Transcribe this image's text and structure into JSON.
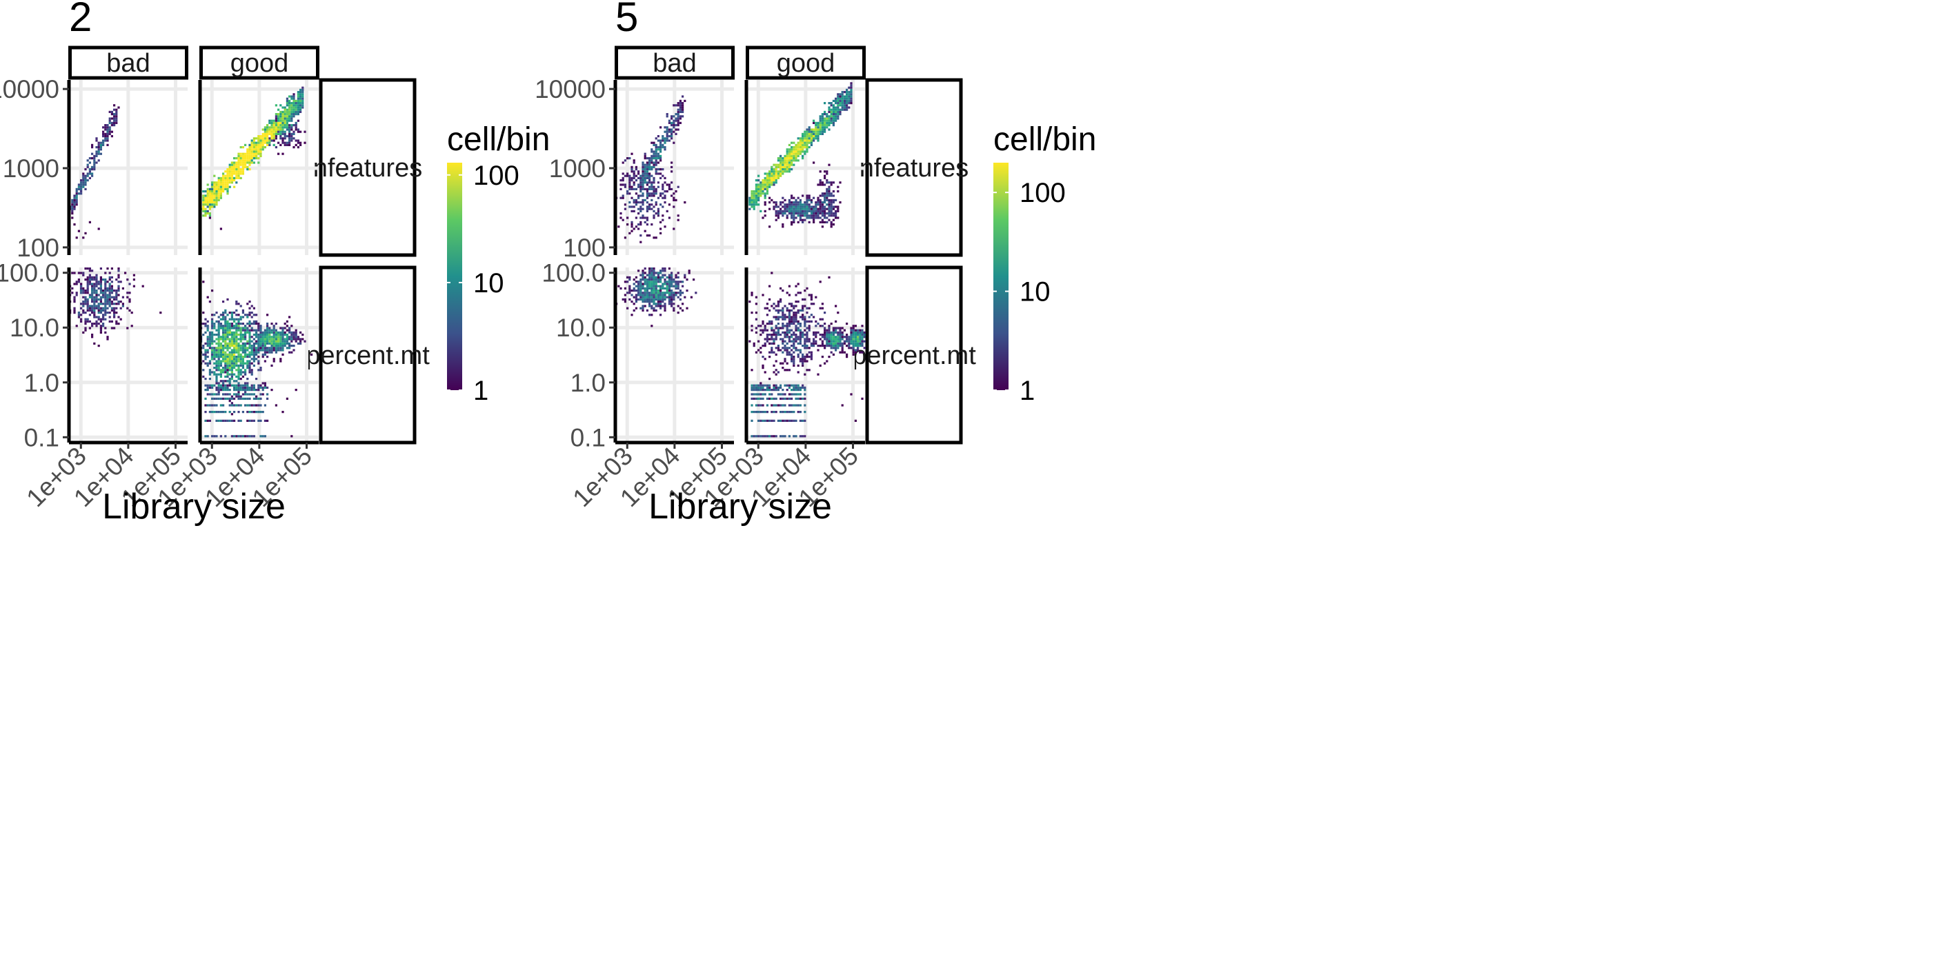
{
  "chart_data": [
    {
      "type": "heatmap",
      "title": "2",
      "xlabel": "Library size",
      "ylabel": "",
      "x_scale": "log10",
      "y_scale": "log10",
      "x_ticks": [
        "1e+03",
        "1e+04",
        "1e+05"
      ],
      "x_tick_values": [
        1000,
        10000,
        100000
      ],
      "facet_columns": [
        "bad",
        "good"
      ],
      "facet_rows": [
        {
          "name": "nfeatures",
          "ylim": [
            80,
            13000
          ],
          "y_ticks": [
            "100",
            "1000",
            "10000"
          ],
          "y_tick_values": [
            100,
            1000,
            10000
          ]
        },
        {
          "name": "percent.mt",
          "ylim": [
            0.08,
            125
          ],
          "y_ticks": [
            "0.1",
            "1.0",
            "10.0",
            "100.0"
          ],
          "y_tick_values": [
            0.1,
            1,
            10,
            100
          ]
        }
      ],
      "fill": {
        "title": "cell/bin",
        "scale": "log10",
        "range": [
          1,
          130
        ],
        "ticks": [
          "1",
          "10",
          "100"
        ],
        "tick_values": [
          1,
          10,
          100
        ],
        "palette": "viridis"
      },
      "panels": [
        {
          "col": "bad",
          "row": "nfeatures",
          "clusters": [
            {
              "kind": "band",
              "x0": 600,
              "y0": 300,
              "x1": 6000,
              "y1": 5500,
              "width": 0.06,
              "n": 260,
              "peak": 3
            }
          ],
          "scatter": [
            [
              700,
              190
            ],
            [
              900,
              160
            ],
            [
              1200,
              150
            ],
            [
              800,
              130
            ],
            [
              2500,
              170
            ],
            [
              1500,
              210
            ],
            [
              650,
              240
            ],
            [
              1100,
              130
            ]
          ]
        },
        {
          "col": "good",
          "row": "nfeatures",
          "clusters": [
            {
              "kind": "band",
              "x0": 650,
              "y0": 330,
              "x1": 85000,
              "y1": 8000,
              "width": 0.07,
              "n": 1500,
              "peak": 120
            },
            {
              "kind": "cloud",
              "cx": 40000,
              "cy": 3000,
              "sx": 0.15,
              "sy": 0.12,
              "n": 120,
              "peak": 3
            }
          ],
          "scatter": [
            [
              1500,
              170
            ],
            [
              900,
              240
            ],
            [
              60000,
              2000
            ],
            [
              30000,
              1500
            ]
          ]
        },
        {
          "col": "bad",
          "row": "percent.mt",
          "clusters": [
            {
              "kind": "cloud",
              "cx": 2500,
              "cy": 35,
              "sx": 0.3,
              "sy": 0.3,
              "n": 500,
              "peak": 3
            }
          ],
          "scatter": []
        },
        {
          "col": "good",
          "row": "percent.mt",
          "clusters": [
            {
              "kind": "cloud",
              "cx": 2500,
              "cy": 4,
              "sx": 0.3,
              "sy": 0.35,
              "n": 1100,
              "peak": 30
            },
            {
              "kind": "cloud",
              "cx": 20000,
              "cy": 6,
              "sx": 0.25,
              "sy": 0.12,
              "n": 500,
              "peak": 12
            },
            {
              "kind": "stripes",
              "x0": 700,
              "x1": 15000,
              "levels": [
                0.1,
                0.2,
                0.3,
                0.4,
                0.5,
                0.6,
                0.7,
                0.8,
                0.9
              ],
              "peak": 4
            }
          ],
          "scatter": [
            [
              22000,
              0.4
            ],
            [
              30000,
              0.3
            ],
            [
              40000,
              0.5
            ],
            [
              50000,
              0.1
            ],
            [
              60000,
              0.7
            ]
          ]
        }
      ]
    },
    {
      "type": "heatmap",
      "title": "5",
      "xlabel": "Library size",
      "ylabel": "",
      "x_scale": "log10",
      "y_scale": "log10",
      "x_ticks": [
        "1e+03",
        "1e+04",
        "1e+05"
      ],
      "x_tick_values": [
        1000,
        10000,
        100000
      ],
      "facet_columns": [
        "bad",
        "good"
      ],
      "facet_rows": [
        {
          "name": "nfeatures",
          "ylim": [
            80,
            13000
          ],
          "y_ticks": [
            "100",
            "1000",
            "10000"
          ],
          "y_tick_values": [
            100,
            1000,
            10000
          ]
        },
        {
          "name": "percent.mt",
          "ylim": [
            0.08,
            125
          ],
          "y_ticks": [
            "0.1",
            "1.0",
            "10.0",
            "100.0"
          ],
          "y_tick_values": [
            0.1,
            1,
            10,
            100
          ]
        }
      ],
      "fill": {
        "title": "cell/bin",
        "scale": "log10",
        "range": [
          1,
          200
        ],
        "ticks": [
          "1",
          "10",
          "100"
        ],
        "tick_values": [
          1,
          10,
          100
        ],
        "palette": "viridis"
      },
      "panels": [
        {
          "col": "bad",
          "row": "nfeatures",
          "clusters": [
            {
              "kind": "band",
              "x0": 2000,
              "y0": 700,
              "x1": 15000,
              "y1": 6000,
              "width": 0.08,
              "n": 300,
              "peak": 5
            },
            {
              "kind": "cloud",
              "cx": 2500,
              "cy": 500,
              "sx": 0.3,
              "sy": 0.25,
              "n": 350,
              "peak": 3
            }
          ],
          "scatter": [
            [
              1000,
              200
            ],
            [
              1300,
              160
            ],
            [
              900,
              130
            ]
          ]
        },
        {
          "col": "good",
          "row": "nfeatures",
          "clusters": [
            {
              "kind": "band",
              "x0": 700,
              "y0": 400,
              "x1": 95000,
              "y1": 9000,
              "width": 0.06,
              "n": 1300,
              "peak": 60
            },
            {
              "kind": "cloud",
              "cx": 8000,
              "cy": 300,
              "sx": 0.3,
              "sy": 0.08,
              "n": 400,
              "peak": 4
            },
            {
              "kind": "cloud",
              "cx": 30000,
              "cy": 400,
              "sx": 0.1,
              "sy": 0.15,
              "n": 120,
              "peak": 3
            }
          ],
          "scatter": [
            [
              15000,
              1200
            ],
            [
              20000,
              900
            ]
          ]
        },
        {
          "col": "bad",
          "row": "percent.mt",
          "clusters": [
            {
              "kind": "cloud",
              "cx": 4000,
              "cy": 50,
              "sx": 0.3,
              "sy": 0.2,
              "n": 650,
              "peak": 8
            }
          ],
          "scatter": []
        },
        {
          "col": "good",
          "row": "percent.mt",
          "clusters": [
            {
              "kind": "cloud",
              "cx": 5000,
              "cy": 8,
              "sx": 0.4,
              "sy": 0.35,
              "n": 550,
              "peak": 3
            },
            {
              "kind": "cloud",
              "cx": 40000,
              "cy": 6,
              "sx": 0.1,
              "sy": 0.1,
              "n": 250,
              "peak": 8
            },
            {
              "kind": "cloud",
              "cx": 120000,
              "cy": 6,
              "sx": 0.1,
              "sy": 0.1,
              "n": 250,
              "peak": 8
            },
            {
              "kind": "stripes",
              "x0": 700,
              "x1": 10000,
              "levels": [
                0.1,
                0.2,
                0.3,
                0.4,
                0.5,
                0.6,
                0.7,
                0.8,
                0.9
              ],
              "peak": 4
            }
          ],
          "scatter": [
            [
              60000,
              0.4
            ],
            [
              90000,
              0.6
            ],
            [
              120000,
              0.2
            ],
            [
              150000,
              0.5
            ]
          ]
        }
      ]
    }
  ]
}
